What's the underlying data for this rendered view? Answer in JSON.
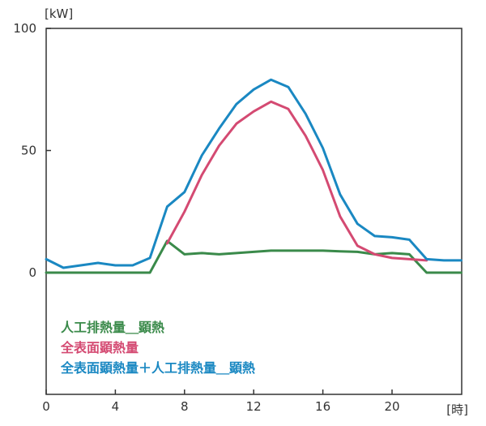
{
  "chart_data": {
    "type": "line",
    "ylabel": "[kW]",
    "xlabel": "[時]",
    "xlim": [
      0,
      24
    ],
    "ylim": [
      -100,
      100
    ],
    "x_ticks": [
      0,
      4,
      8,
      12,
      16,
      20
    ],
    "y_ticks": [
      0,
      50,
      100
    ],
    "grid": false,
    "legend_position": "bottom-left",
    "x": [
      0,
      1,
      2,
      3,
      4,
      5,
      6,
      7,
      8,
      9,
      10,
      11,
      12,
      13,
      14,
      15,
      16,
      17,
      18,
      19,
      20,
      21,
      22,
      23,
      24
    ],
    "series": [
      {
        "name": "人工排熱量＿顕熱",
        "color": "#3a8a4a",
        "values": [
          0,
          0,
          0,
          0,
          0,
          0,
          0,
          13,
          7.5,
          8,
          7.5,
          8,
          8.5,
          9,
          9,
          9,
          9,
          8.7,
          8.5,
          7.5,
          8,
          7.5,
          0,
          0,
          0
        ]
      },
      {
        "name": "全表面顕熱量",
        "color": "#d44a72",
        "values": [
          null,
          null,
          null,
          null,
          null,
          null,
          null,
          12,
          25,
          40,
          52,
          61,
          66,
          70,
          67,
          56,
          42,
          23,
          11,
          7.5,
          6,
          5.5,
          5,
          null,
          null
        ]
      },
      {
        "name": "全表面顕熱量＋人工排熱量＿顕熱",
        "color": "#1a88c2",
        "values": [
          5.5,
          2,
          3,
          4,
          3,
          3,
          6,
          27,
          33,
          48,
          59,
          69,
          75,
          79,
          76,
          65,
          51,
          32,
          20,
          15,
          14.5,
          13.5,
          5.5,
          5,
          5
        ]
      }
    ]
  }
}
